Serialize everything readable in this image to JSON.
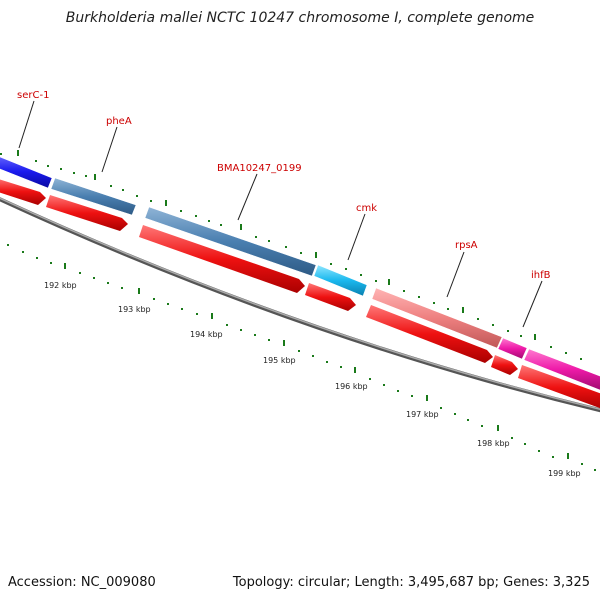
{
  "title": "Burkholderia mallei NCTC 10247 chromosome I, complete genome",
  "accession": "Accession: NC_009080",
  "topology": "Topology: circular; Length: 3,495,687 bp; Genes: 3,325",
  "gene_labels": [
    "serC-1",
    "pheA",
    "BMA10247_0199",
    "cmk",
    "rpsA",
    "ihfB"
  ],
  "kbp_labels": [
    "192 kbp",
    "193 kbp",
    "194 kbp",
    "195 kbp",
    "196 kbp",
    "197 kbp",
    "198 kbp",
    "199 kbp"
  ],
  "colors": {
    "gene_label": "#cc0000",
    "tick": "#1a7a1a",
    "backbone": "#888888",
    "cds_red": "#ee1111",
    "steelblue": "#4a7fb0",
    "blue": "#1a1aee",
    "cyan": "#1ab8ee",
    "salmon": "#ee8080",
    "magenta": "#ee1aa8"
  }
}
